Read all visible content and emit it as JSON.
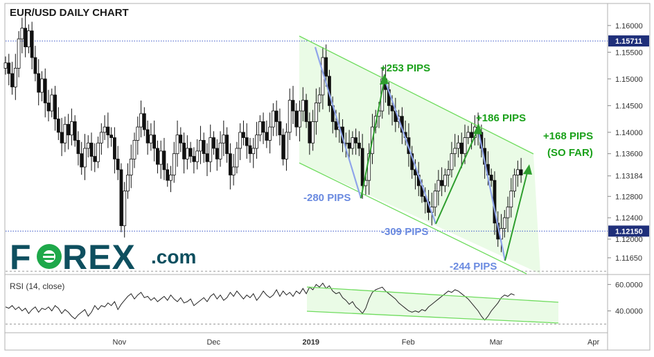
{
  "chart_data": {
    "type": "candlestick",
    "title": "EUR/USD DAILY CHART",
    "price_axis": {
      "min": 1.1135,
      "max": 1.164,
      "ticks": [
        "1.16000",
        "1.15500",
        "1.15000",
        "1.14500",
        "1.14000",
        "1.13600",
        "1.13184",
        "1.12800",
        "1.12400",
        "1.12000",
        "1.11650"
      ],
      "tick_values": [
        1.16,
        1.155,
        1.15,
        1.145,
        1.14,
        1.136,
        1.13184,
        1.128,
        1.124,
        1.12,
        1.1165
      ]
    },
    "time_axis": {
      "labels": [
        "Nov",
        "Dec",
        "2019",
        "Feb",
        "Mar",
        "Apr"
      ],
      "label_days": [
        31,
        61,
        92,
        123,
        151,
        182
      ]
    },
    "levels": [
      {
        "label": "1.15711",
        "value": 1.15711
      },
      {
        "label": "1.12150",
        "value": 1.1215
      }
    ],
    "closes": [
      [
        0,
        1.153
      ],
      [
        1,
        1.151
      ],
      [
        2,
        1.1485
      ],
      [
        3,
        1.152
      ],
      [
        4,
        1.1575
      ],
      [
        5,
        1.1595
      ],
      [
        6,
        1.156
      ],
      [
        7,
        1.159
      ],
      [
        8,
        1.154
      ],
      [
        9,
        1.151
      ],
      [
        10,
        1.1475
      ],
      [
        11,
        1.15
      ],
      [
        12,
        1.1455
      ],
      [
        13,
        1.144
      ],
      [
        14,
        1.147
      ],
      [
        15,
        1.1425
      ],
      [
        16,
        1.14
      ],
      [
        17,
        1.138
      ],
      [
        18,
        1.1415
      ],
      [
        19,
        1.1395
      ],
      [
        20,
        1.142
      ],
      [
        21,
        1.1385
      ],
      [
        22,
        1.136
      ],
      [
        23,
        1.1335
      ],
      [
        24,
        1.137
      ],
      [
        25,
        1.138
      ],
      [
        26,
        1.1355
      ],
      [
        27,
        1.1345
      ],
      [
        28,
        1.138
      ],
      [
        29,
        1.14
      ],
      [
        30,
        1.141
      ],
      [
        31,
        1.1395
      ],
      [
        32,
        1.139
      ],
      [
        33,
        1.135
      ],
      [
        34,
        1.133
      ],
      [
        35,
        1.1225
      ],
      [
        36,
        1.129
      ],
      [
        37,
        1.132
      ],
      [
        38,
        1.135
      ],
      [
        39,
        1.1385
      ],
      [
        40,
        1.141
      ],
      [
        41,
        1.1435
      ],
      [
        42,
        1.1405
      ],
      [
        43,
        1.138
      ],
      [
        44,
        1.1395
      ],
      [
        45,
        1.137
      ],
      [
        46,
        1.134
      ],
      [
        47,
        1.1365
      ],
      [
        48,
        1.133
      ],
      [
        49,
        1.131
      ],
      [
        50,
        1.132
      ],
      [
        51,
        1.136
      ],
      [
        52,
        1.1395
      ],
      [
        53,
        1.138
      ],
      [
        54,
        1.135
      ],
      [
        55,
        1.137
      ],
      [
        56,
        1.1355
      ],
      [
        57,
        1.1345
      ],
      [
        58,
        1.1365
      ],
      [
        59,
        1.1385
      ],
      [
        60,
        1.136
      ],
      [
        61,
        1.1345
      ],
      [
        62,
        1.139
      ],
      [
        63,
        1.137
      ],
      [
        64,
        1.135
      ],
      [
        65,
        1.138
      ],
      [
        66,
        1.1395
      ],
      [
        67,
        1.136
      ],
      [
        68,
        1.132
      ],
      [
        69,
        1.1335
      ],
      [
        70,
        1.137
      ],
      [
        71,
        1.14
      ],
      [
        72,
        1.139
      ],
      [
        73,
        1.1375
      ],
      [
        74,
        1.136
      ],
      [
        75,
        1.137
      ],
      [
        76,
        1.1395
      ],
      [
        77,
        1.142
      ],
      [
        78,
        1.14
      ],
      [
        79,
        1.1385
      ],
      [
        80,
        1.141
      ],
      [
        81,
        1.144
      ],
      [
        82,
        1.142
      ],
      [
        83,
        1.1395
      ],
      [
        84,
        1.135
      ],
      [
        85,
        1.14
      ],
      [
        86,
        1.146
      ],
      [
        87,
        1.144
      ],
      [
        88,
        1.141
      ],
      [
        89,
        1.144
      ],
      [
        90,
        1.146
      ],
      [
        91,
        1.142
      ],
      [
        92,
        1.138
      ],
      [
        93,
        1.142
      ],
      [
        94,
        1.1455
      ],
      [
        95,
        1.147
      ],
      [
        96,
        1.154
      ],
      [
        97,
        1.1505
      ],
      [
        98,
        1.145
      ],
      [
        99,
        1.142
      ],
      [
        100,
        1.1405
      ],
      [
        101,
        1.141
      ],
      [
        102,
        1.138
      ],
      [
        103,
        1.138
      ],
      [
        104,
        1.137
      ],
      [
        105,
        1.139
      ],
      [
        106,
        1.138
      ],
      [
        107,
        1.137
      ],
      [
        108,
        1.13
      ],
      [
        109,
        1.131
      ],
      [
        110,
        1.136
      ],
      [
        111,
        1.141
      ],
      [
        112,
        1.143
      ],
      [
        113,
        1.144
      ],
      [
        114,
        1.15
      ],
      [
        115,
        1.148
      ],
      [
        116,
        1.145
      ],
      [
        117,
        1.144
      ],
      [
        118,
        1.142
      ],
      [
        119,
        1.143
      ],
      [
        120,
        1.14
      ],
      [
        121,
        1.139
      ],
      [
        122,
        1.136
      ],
      [
        123,
        1.133
      ],
      [
        124,
        1.132
      ],
      [
        125,
        1.13
      ],
      [
        126,
        1.128
      ],
      [
        127,
        1.127
      ],
      [
        128,
        1.125
      ],
      [
        129,
        1.126
      ],
      [
        130,
        1.129
      ],
      [
        131,
        1.131
      ],
      [
        132,
        1.13
      ],
      [
        133,
        1.132
      ],
      [
        134,
        1.133
      ],
      [
        135,
        1.136
      ],
      [
        136,
        1.137
      ],
      [
        137,
        1.138
      ],
      [
        138,
        1.136
      ],
      [
        139,
        1.139
      ],
      [
        140,
        1.14
      ],
      [
        141,
        1.139
      ],
      [
        142,
        1.141
      ],
      [
        143,
        1.14
      ],
      [
        144,
        1.137
      ],
      [
        145,
        1.134
      ],
      [
        146,
        1.132
      ],
      [
        147,
        1.131
      ],
      [
        148,
        1.123
      ],
      [
        149,
        1.12
      ],
      [
        150,
        1.122
      ],
      [
        151,
        1.124
      ],
      [
        152,
        1.126
      ],
      [
        153,
        1.129
      ],
      [
        154,
        1.132
      ],
      [
        155,
        1.133
      ],
      [
        156,
        1.132
      ]
    ],
    "annotations": [
      {
        "text": "+253 PIPS",
        "color": "#1aa11a"
      },
      {
        "text": "+186 PIPS",
        "color": "#1aa11a"
      },
      {
        "text": "+168 PIPS",
        "color": "#1aa11a"
      },
      {
        "text": "(SO FAR)",
        "color": "#1aa11a"
      },
      {
        "text": "-280 PIPS",
        "color": "#6a8ae0"
      },
      {
        "text": "-309 PIPS",
        "color": "#6a8ae0"
      },
      {
        "text": "-244 PIPS",
        "color": "#6a8ae0"
      }
    ],
    "rsi": {
      "label": "RSI (14, close)",
      "ticks": [
        "60.0000",
        "40.0000"
      ],
      "tick_values": [
        60,
        40
      ],
      "range": [
        24,
        67
      ],
      "guides": [
        70,
        30
      ],
      "values": [
        [
          0,
          43
        ],
        [
          1,
          42
        ],
        [
          2,
          44
        ],
        [
          3,
          41
        ],
        [
          4,
          43
        ],
        [
          5,
          40
        ],
        [
          6,
          42
        ],
        [
          7,
          38
        ],
        [
          8,
          41
        ],
        [
          9,
          43
        ],
        [
          10,
          39
        ],
        [
          11,
          42
        ],
        [
          12,
          41
        ],
        [
          13,
          43
        ],
        [
          14,
          40
        ],
        [
          15,
          44
        ],
        [
          16,
          42
        ],
        [
          17,
          38
        ],
        [
          18,
          41
        ],
        [
          19,
          39
        ],
        [
          20,
          36
        ],
        [
          21,
          34
        ],
        [
          22,
          37
        ],
        [
          23,
          39
        ],
        [
          24,
          41
        ],
        [
          25,
          36
        ],
        [
          26,
          39
        ],
        [
          27,
          44
        ],
        [
          28,
          41
        ],
        [
          29,
          44
        ],
        [
          30,
          43
        ],
        [
          31,
          46
        ],
        [
          32,
          44
        ],
        [
          33,
          47
        ],
        [
          34,
          41
        ],
        [
          35,
          45
        ],
        [
          36,
          48
        ],
        [
          37,
          51
        ],
        [
          38,
          53
        ],
        [
          39,
          49
        ],
        [
          40,
          52
        ],
        [
          41,
          54
        ],
        [
          42,
          50
        ],
        [
          43,
          51
        ],
        [
          44,
          48
        ],
        [
          45,
          50
        ],
        [
          46,
          47
        ],
        [
          47,
          49
        ],
        [
          48,
          51
        ],
        [
          49,
          48
        ],
        [
          50,
          52
        ],
        [
          51,
          49
        ],
        [
          52,
          47
        ],
        [
          53,
          50
        ],
        [
          54,
          46
        ],
        [
          55,
          47
        ],
        [
          56,
          49
        ],
        [
          57,
          44
        ],
        [
          58,
          46
        ],
        [
          59,
          48
        ],
        [
          60,
          50
        ],
        [
          61,
          47
        ],
        [
          62,
          51
        ],
        [
          63,
          53
        ],
        [
          64,
          49
        ],
        [
          65,
          52
        ],
        [
          66,
          48
        ],
        [
          67,
          50
        ],
        [
          68,
          54
        ],
        [
          69,
          51
        ],
        [
          70,
          55
        ],
        [
          71,
          52
        ],
        [
          72,
          49
        ],
        [
          73,
          52
        ],
        [
          74,
          50
        ],
        [
          75,
          53
        ],
        [
          76,
          48
        ],
        [
          77,
          51
        ],
        [
          78,
          55
        ],
        [
          79,
          52
        ],
        [
          80,
          50
        ],
        [
          81,
          52
        ],
        [
          82,
          56
        ],
        [
          83,
          51
        ],
        [
          84,
          55
        ],
        [
          85,
          52
        ],
        [
          86,
          54
        ],
        [
          87,
          51
        ],
        [
          88,
          55
        ],
        [
          89,
          53
        ],
        [
          90,
          57
        ],
        [
          91,
          53
        ],
        [
          92,
          58
        ],
        [
          93,
          56
        ],
        [
          94,
          60
        ],
        [
          95,
          58
        ],
        [
          96,
          61
        ],
        [
          97,
          57
        ],
        [
          98,
          59
        ],
        [
          99,
          55
        ],
        [
          100,
          53
        ],
        [
          101,
          54
        ],
        [
          102,
          50
        ],
        [
          103,
          48
        ],
        [
          104,
          45
        ],
        [
          105,
          47
        ],
        [
          106,
          43
        ],
        [
          107,
          41
        ],
        [
          108,
          38
        ],
        [
          109,
          42
        ],
        [
          110,
          49
        ],
        [
          111,
          54
        ],
        [
          112,
          56
        ],
        [
          113,
          57
        ],
        [
          114,
          58
        ],
        [
          115,
          55
        ],
        [
          116,
          53
        ],
        [
          117,
          51
        ],
        [
          118,
          49
        ],
        [
          119,
          46
        ],
        [
          120,
          44
        ],
        [
          121,
          42
        ],
        [
          122,
          40
        ],
        [
          123,
          39
        ],
        [
          124,
          40
        ],
        [
          125,
          39
        ],
        [
          126,
          41
        ],
        [
          127,
          40
        ],
        [
          128,
          43
        ],
        [
          129,
          45
        ],
        [
          130,
          47
        ],
        [
          131,
          49
        ],
        [
          132,
          51
        ],
        [
          133,
          53
        ],
        [
          134,
          55
        ],
        [
          135,
          54
        ],
        [
          136,
          56
        ],
        [
          137,
          55
        ],
        [
          138,
          53
        ],
        [
          139,
          51
        ],
        [
          140,
          49
        ],
        [
          141,
          46
        ],
        [
          142,
          43
        ],
        [
          143,
          40
        ],
        [
          144,
          36
        ],
        [
          145,
          33
        ],
        [
          146,
          36
        ],
        [
          147,
          40
        ],
        [
          148,
          43
        ],
        [
          149,
          46
        ],
        [
          150,
          50
        ],
        [
          151,
          52
        ],
        [
          152,
          51
        ],
        [
          153,
          53
        ],
        [
          154,
          52
        ]
      ]
    }
  },
  "brand": {
    "logo_text_1": "F",
    "logo_text_2": "REX",
    "logo_suffix": ".com"
  }
}
